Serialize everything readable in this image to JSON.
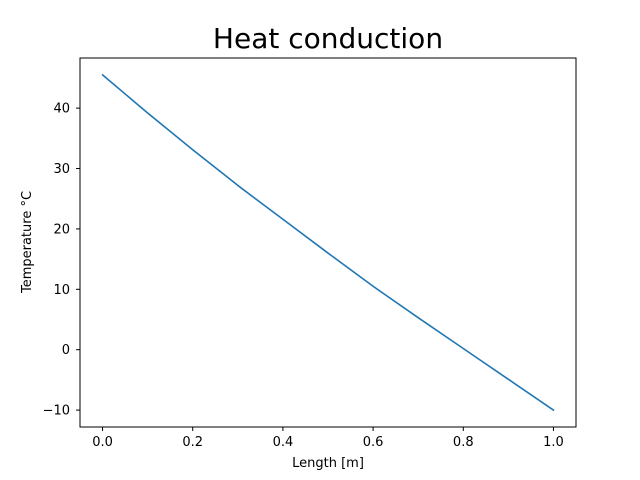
{
  "chart_data": {
    "type": "line",
    "title": "Heat conduction",
    "xlabel": "Length [m]",
    "ylabel": "Temperature °C",
    "xlim": [
      -0.05,
      1.05
    ],
    "ylim": [
      -12.8,
      48.3
    ],
    "x_ticks": [
      0.0,
      0.2,
      0.4,
      0.6,
      0.8,
      1.0
    ],
    "x_tick_labels": [
      "0.0",
      "0.2",
      "0.4",
      "0.6",
      "0.8",
      "1.0"
    ],
    "y_ticks": [
      -10,
      0,
      10,
      20,
      30,
      40
    ],
    "y_tick_labels": [
      "−10",
      "0",
      "10",
      "20",
      "30",
      "40"
    ],
    "grid": false,
    "series": [
      {
        "color": "#1f77b4",
        "x": [
          0.0,
          0.1,
          0.2,
          0.3,
          0.4,
          0.5,
          0.6,
          0.7,
          0.8,
          0.9,
          1.0
        ],
        "y": [
          45.5,
          39.2,
          33.1,
          27.2,
          21.6,
          16.0,
          10.5,
          5.3,
          0.2,
          -4.9,
          -10.0
        ]
      }
    ]
  }
}
